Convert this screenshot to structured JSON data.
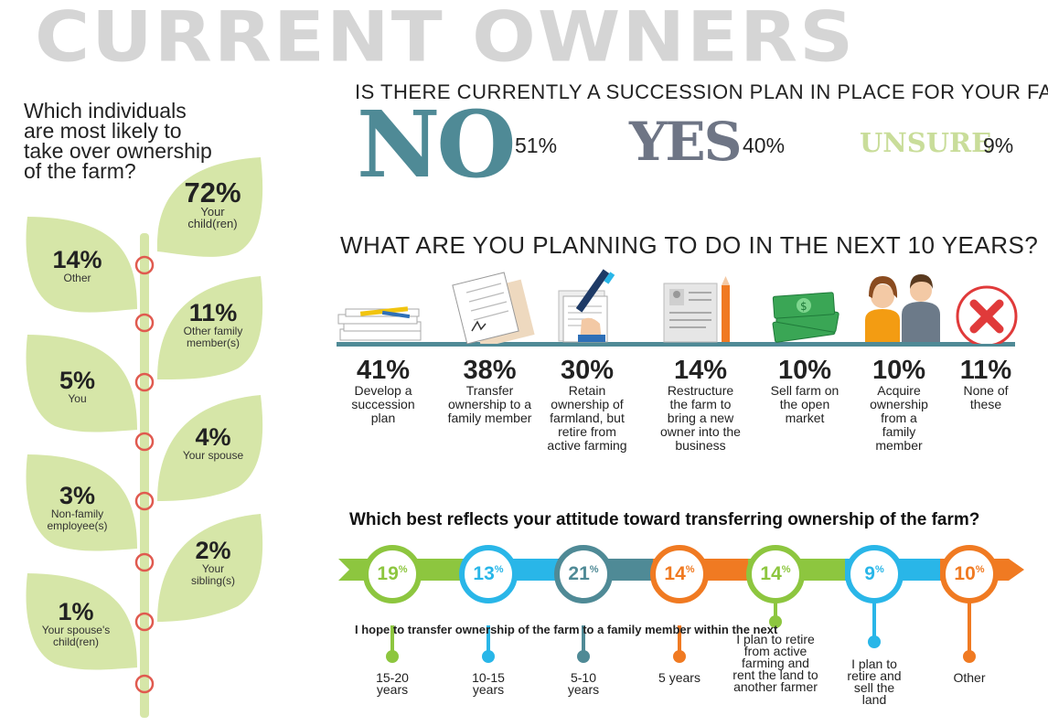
{
  "title": "CURRENT OWNERS",
  "left_question": "Which individuals are most likely to take over ownership of the farm?",
  "successors": [
    {
      "pct": "72%",
      "label": "Your child(ren)"
    },
    {
      "pct": "14%",
      "label": "Other"
    },
    {
      "pct": "11%",
      "label": "Other family member(s)"
    },
    {
      "pct": "5%",
      "label": "You"
    },
    {
      "pct": "4%",
      "label": "Your spouse"
    },
    {
      "pct": "3%",
      "label": "Non-family employee(s)"
    },
    {
      "pct": "2%",
      "label": "Your sibling(s)"
    },
    {
      "pct": "1%",
      "label": "Your spouse's child(ren)"
    }
  ],
  "succession": {
    "question": "IS THERE CURRENTLY A SUCCESSION PLAN IN PLACE FOR YOUR FARM?",
    "answers": [
      {
        "word": "NO",
        "pct": "51%",
        "color": "#4f8a96"
      },
      {
        "word": "YES",
        "pct": "40%",
        "color": "#6e7585"
      },
      {
        "word": "UNSURE",
        "pct": "9%",
        "color": "#c9dd9a"
      }
    ]
  },
  "plans": {
    "question": "WHAT ARE YOU PLANNING TO DO IN THE NEXT 10 YEARS?",
    "items": [
      {
        "pct": "41%",
        "label": "Develop a succession plan",
        "icon": "papers-pen-icon"
      },
      {
        "pct": "38%",
        "label": "Transfer ownership to a family member",
        "icon": "signed-contract-icon"
      },
      {
        "pct": "30%",
        "label": "Retain ownership of farmland, but retire from active farming",
        "icon": "document-signing-icon"
      },
      {
        "pct": "14%",
        "label": "Restructure the farm to bring a new owner into the business",
        "icon": "resume-pencil-icon"
      },
      {
        "pct": "10%",
        "label": "Sell farm on the open market",
        "icon": "money-stack-icon"
      },
      {
        "pct": "10%",
        "label": "Acquire ownership from a family member",
        "icon": "couple-icon"
      },
      {
        "pct": "11%",
        "label": "None of these",
        "icon": "red-x-icon"
      }
    ]
  },
  "attitude": {
    "question": "Which best reflects your attitude toward transferring ownership of the farm?",
    "hope_label": "I hope to transfer ownership of the farm to a family member within the next",
    "items": [
      {
        "num": "19",
        "sym": "%",
        "label": "15-20 years",
        "color": "#8dc63f"
      },
      {
        "num": "13",
        "sym": "%",
        "label": "10-15 years",
        "color": "#29b6e8"
      },
      {
        "num": "21",
        "sym": "%",
        "label": "5-10 years",
        "color": "#4f8a96"
      },
      {
        "num": "14",
        "sym": "%",
        "label": "5 years",
        "color": "#f07a22"
      },
      {
        "num": "14",
        "sym": "%",
        "label": "I plan to retire from active farming and rent the land to another farmer",
        "color": "#8dc63f"
      },
      {
        "num": "9",
        "sym": "%",
        "label": "I plan to retire and sell the land",
        "color": "#29b6e8"
      },
      {
        "num": "10",
        "sym": "%",
        "label": "Other",
        "color": "#f07a22"
      }
    ]
  }
}
